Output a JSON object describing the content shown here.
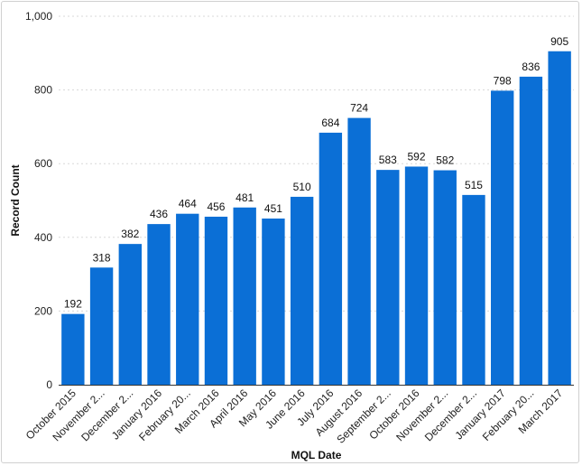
{
  "chart_data": {
    "type": "bar",
    "categories": [
      "October 2015",
      "November 2...",
      "December 2...",
      "January 2016",
      "February 20...",
      "March 2016",
      "April 2016",
      "May 2016",
      "June 2016",
      "July 2016",
      "August 2016",
      "September 2...",
      "October 2016",
      "November 2...",
      "December 2...",
      "January 2017",
      "February 20...",
      "March 2017"
    ],
    "values": [
      192,
      318,
      382,
      436,
      464,
      456,
      481,
      451,
      510,
      684,
      724,
      583,
      592,
      582,
      515,
      798,
      836,
      905
    ],
    "data_labels": [
      "192",
      "318",
      "382",
      "436",
      "464",
      "456",
      "481",
      "451",
      "510",
      "684",
      "724",
      "583",
      "592",
      "582",
      "515",
      "798",
      "836",
      "905"
    ],
    "xlabel": "MQL Date",
    "ylabel": "Record Count",
    "ylim": [
      0,
      1000
    ],
    "yticks": [
      0,
      200,
      400,
      600,
      800,
      1000
    ],
    "ytick_labels": [
      "0",
      "200",
      "400",
      "600",
      "800",
      "1,000"
    ],
    "grid": true,
    "bar_color": "#0b6fd6"
  }
}
